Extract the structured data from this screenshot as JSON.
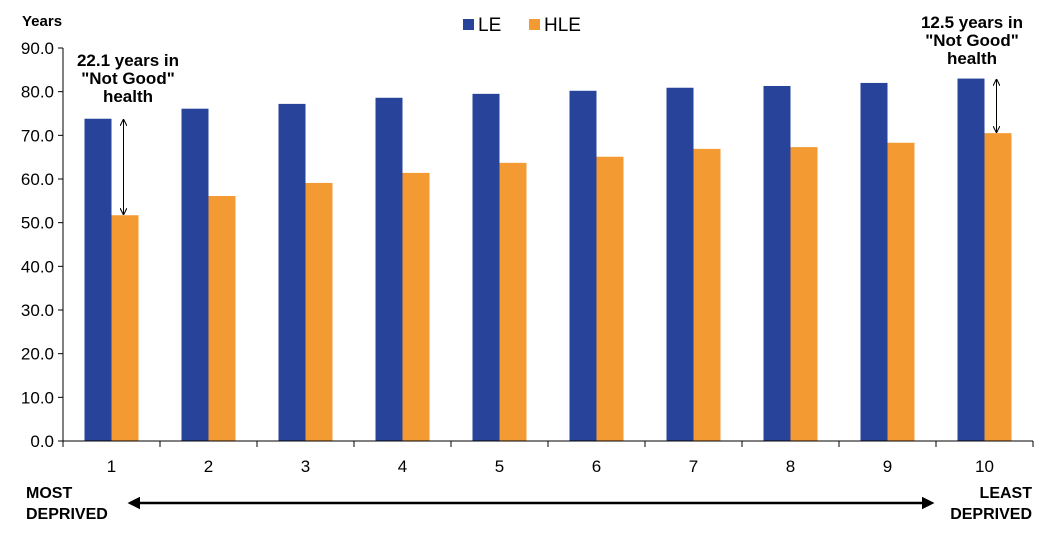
{
  "chart_data": {
    "type": "bar",
    "ylabel": "Years",
    "ylim": [
      0,
      90
    ],
    "yticks": [
      "0.0",
      "10.0",
      "20.0",
      "30.0",
      "40.0",
      "50.0",
      "60.0",
      "70.0",
      "80.0",
      "90.0"
    ],
    "categories": [
      "1",
      "2",
      "3",
      "4",
      "5",
      "6",
      "7",
      "8",
      "9",
      "10"
    ],
    "legend_position": "top-center",
    "grid": false,
    "series": [
      {
        "name": "LE",
        "color": "#27439A",
        "values": [
          73.8,
          76.1,
          77.2,
          78.6,
          79.5,
          80.2,
          80.9,
          81.3,
          82.0,
          83.0
        ]
      },
      {
        "name": "HLE",
        "color": "#F49A33",
        "values": [
          51.7,
          56.1,
          59.1,
          61.4,
          63.7,
          65.1,
          66.9,
          67.3,
          68.3,
          70.5
        ]
      }
    ],
    "annotations": [
      {
        "lines": [
          "22.1 years in",
          "\"Not Good\"",
          "health"
        ]
      },
      {
        "lines": [
          "12.5 years in",
          "\"Not Good\"",
          "health"
        ]
      }
    ],
    "axis_note": {
      "left": [
        "MOST",
        "DEPRIVED"
      ],
      "right": [
        "LEAST",
        "DEPRIVED"
      ]
    }
  }
}
